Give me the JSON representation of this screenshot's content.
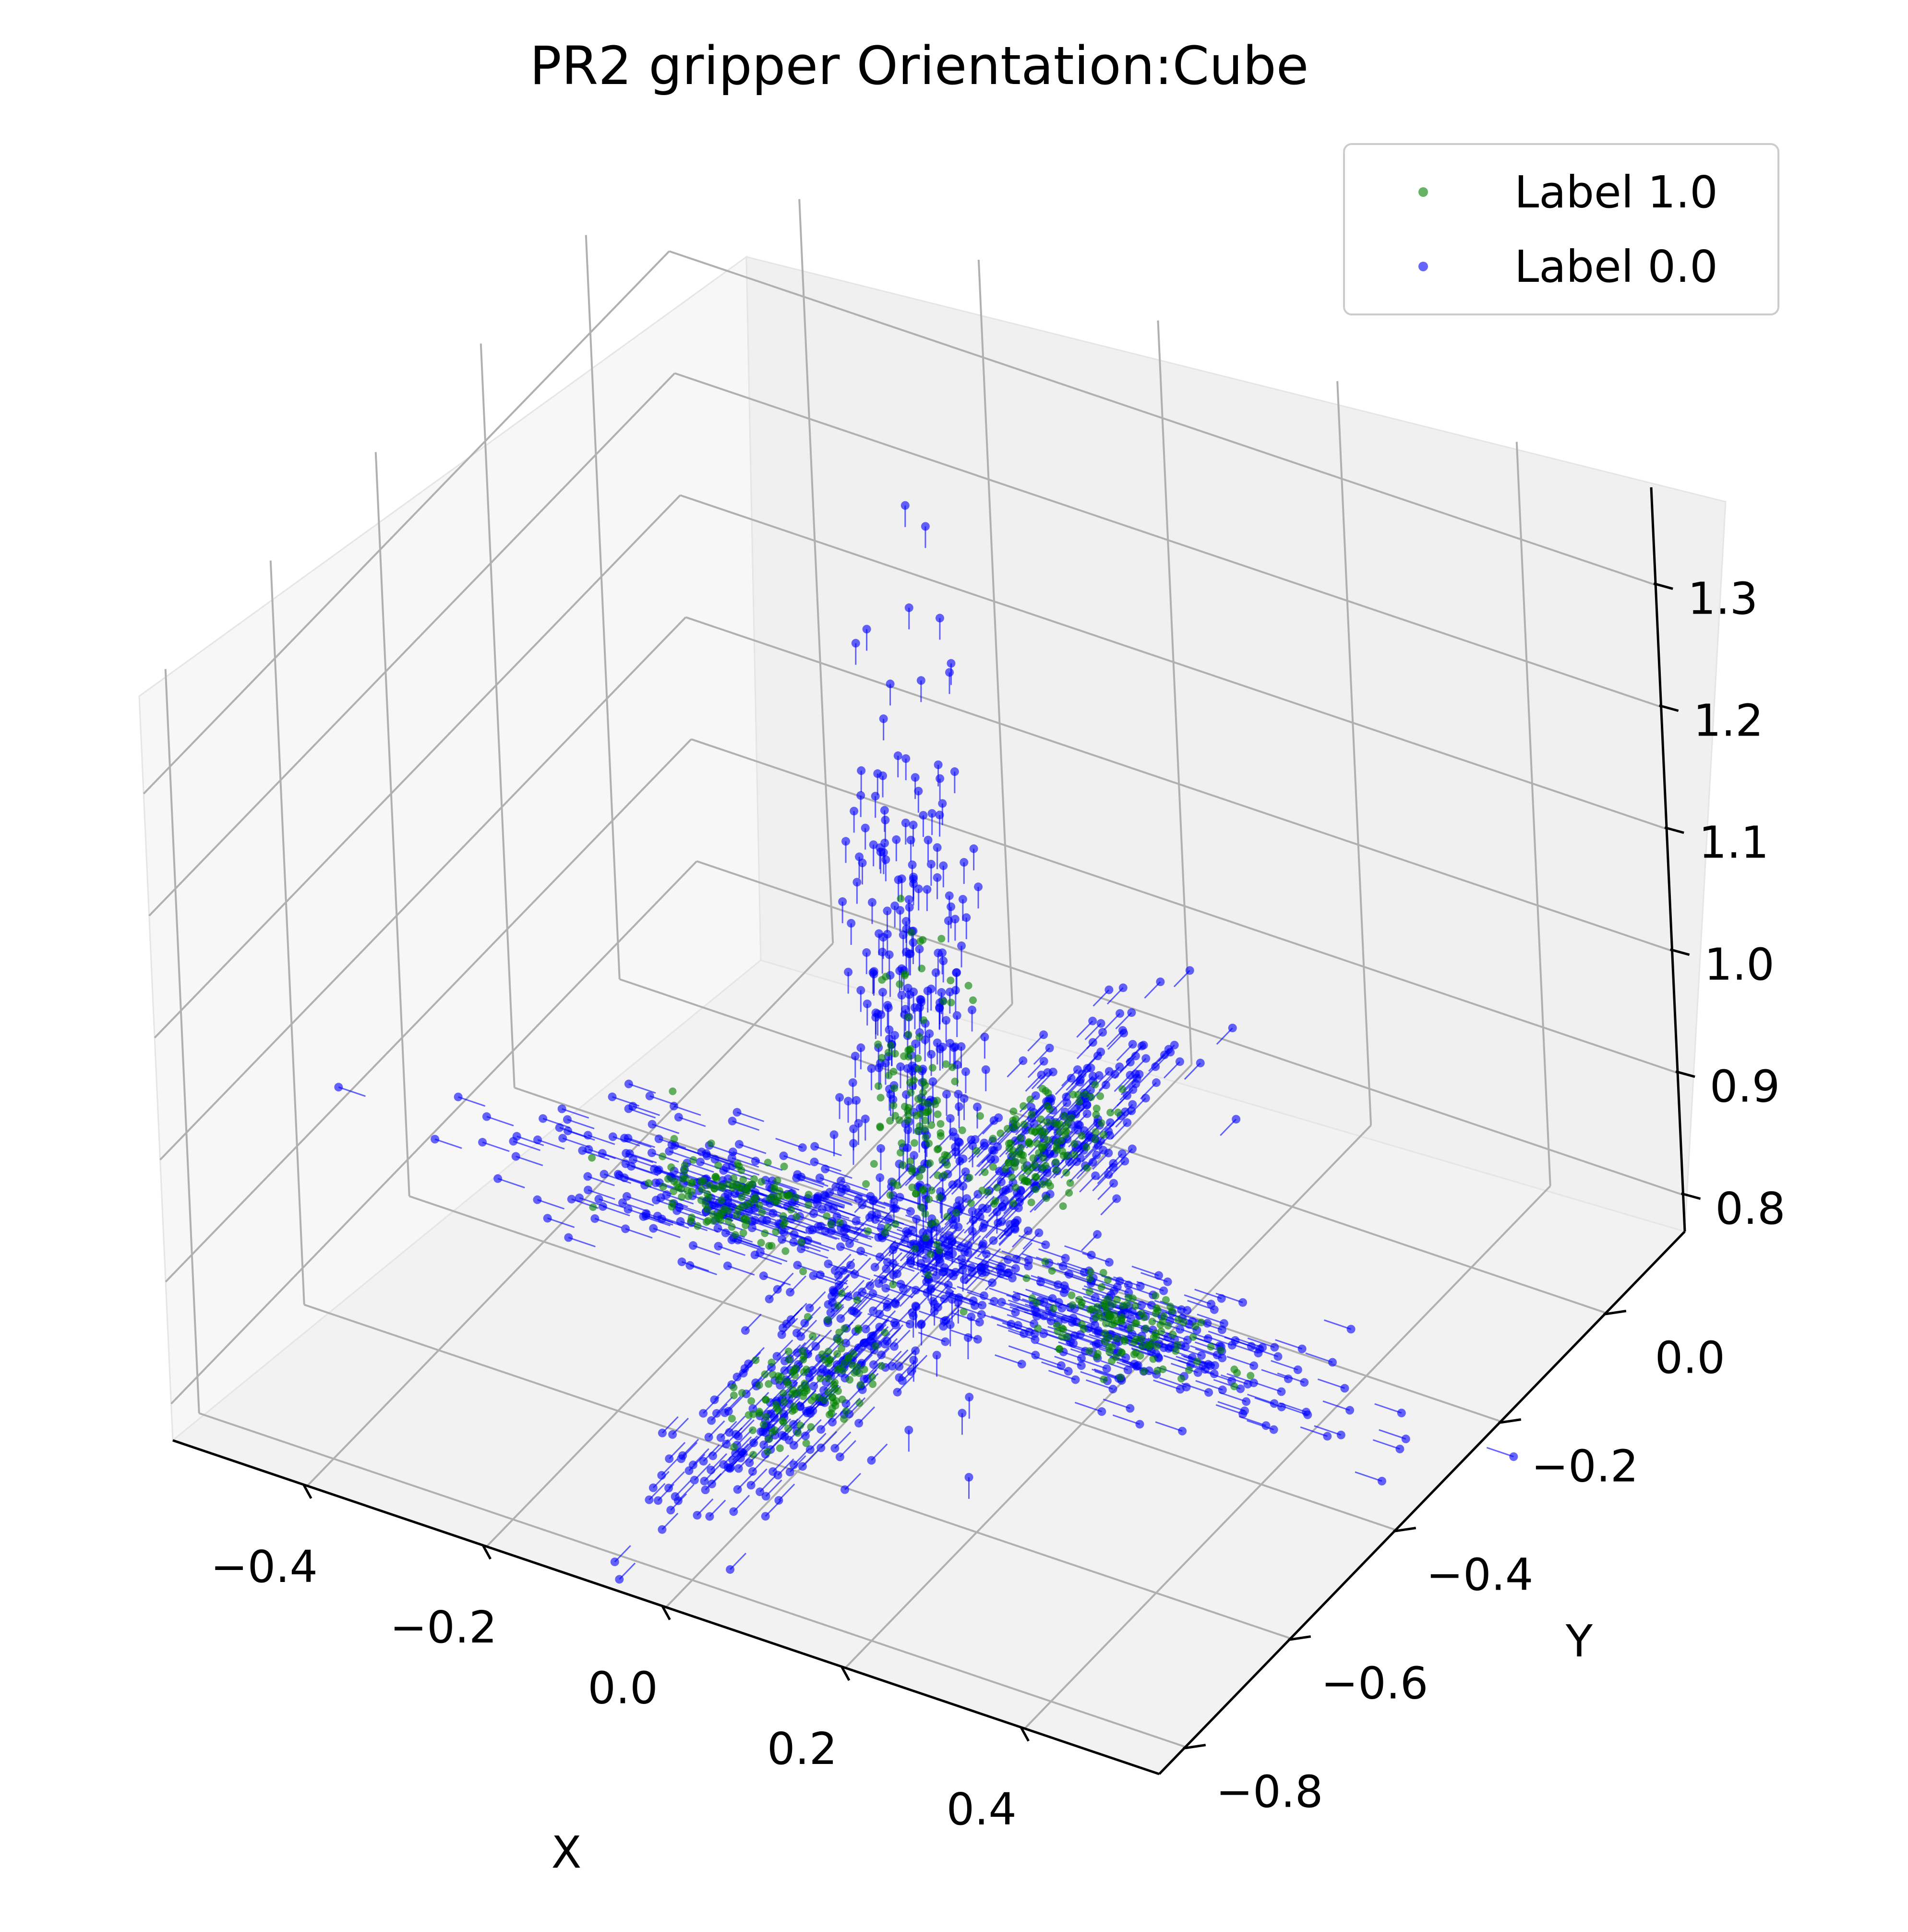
{
  "chart_data": {
    "type": "scatter",
    "title": "PR2 gripper Orientation:Cube",
    "xlabel": "X",
    "ylabel": "Y",
    "zlabel": "",
    "xlim": [
      -0.55,
      0.55
    ],
    "ylim": [
      -0.85,
      0.15
    ],
    "zlim": [
      0.77,
      1.38
    ],
    "x_ticks": [
      "−0.4",
      "−0.2",
      "0.0",
      "0.2",
      "0.4"
    ],
    "x_tick_values": [
      -0.4,
      -0.2,
      0.0,
      0.2,
      0.4
    ],
    "y_ticks": [
      "−0.8",
      "−0.6",
      "−0.4",
      "−0.2",
      "0.0"
    ],
    "y_tick_values": [
      -0.8,
      -0.6,
      -0.4,
      -0.2,
      0.0
    ],
    "z_ticks": [
      "0.8",
      "0.9",
      "1.0",
      "1.1",
      "1.2",
      "1.3"
    ],
    "z_tick_values": [
      0.8,
      0.9,
      1.0,
      1.1,
      1.2,
      1.3
    ],
    "grid": true,
    "legend_position": "top-right",
    "series": [
      {
        "name": "Label 1.0",
        "color": "#008000",
        "clusters": [
          {
            "cx": 0.0,
            "cy": -0.35,
            "cz": 0.95,
            "sx": 0.02,
            "sy": 0.02,
            "sz": 0.06
          },
          {
            "cx": -0.22,
            "cy": -0.35,
            "cz": 0.83,
            "sx": 0.05,
            "sy": 0.025,
            "sz": 0.01
          },
          {
            "cx": 0.22,
            "cy": -0.35,
            "cz": 0.83,
            "sx": 0.05,
            "sy": 0.025,
            "sz": 0.01
          },
          {
            "cx": 0.0,
            "cy": -0.57,
            "cz": 0.83,
            "sx": 0.025,
            "sy": 0.05,
            "sz": 0.01
          },
          {
            "cx": 0.0,
            "cy": -0.13,
            "cz": 0.83,
            "sx": 0.025,
            "sy": 0.05,
            "sz": 0.01
          }
        ]
      },
      {
        "name": "Label 0.0",
        "color": "#0000ff",
        "clusters": [
          {
            "cx": 0.0,
            "cy": -0.35,
            "cz": 1.02,
            "sx": 0.03,
            "sy": 0.03,
            "sz": 0.14
          },
          {
            "cx": -0.22,
            "cy": -0.35,
            "cz": 0.83,
            "sx": 0.12,
            "sy": 0.04,
            "sz": 0.012
          },
          {
            "cx": 0.22,
            "cy": -0.35,
            "cz": 0.83,
            "sx": 0.12,
            "sy": 0.04,
            "sz": 0.012
          },
          {
            "cx": 0.0,
            "cy": -0.57,
            "cz": 0.83,
            "sx": 0.04,
            "sy": 0.12,
            "sz": 0.012
          },
          {
            "cx": 0.0,
            "cy": -0.13,
            "cz": 0.83,
            "sx": 0.04,
            "sy": 0.12,
            "sz": 0.012
          }
        ]
      }
    ]
  }
}
